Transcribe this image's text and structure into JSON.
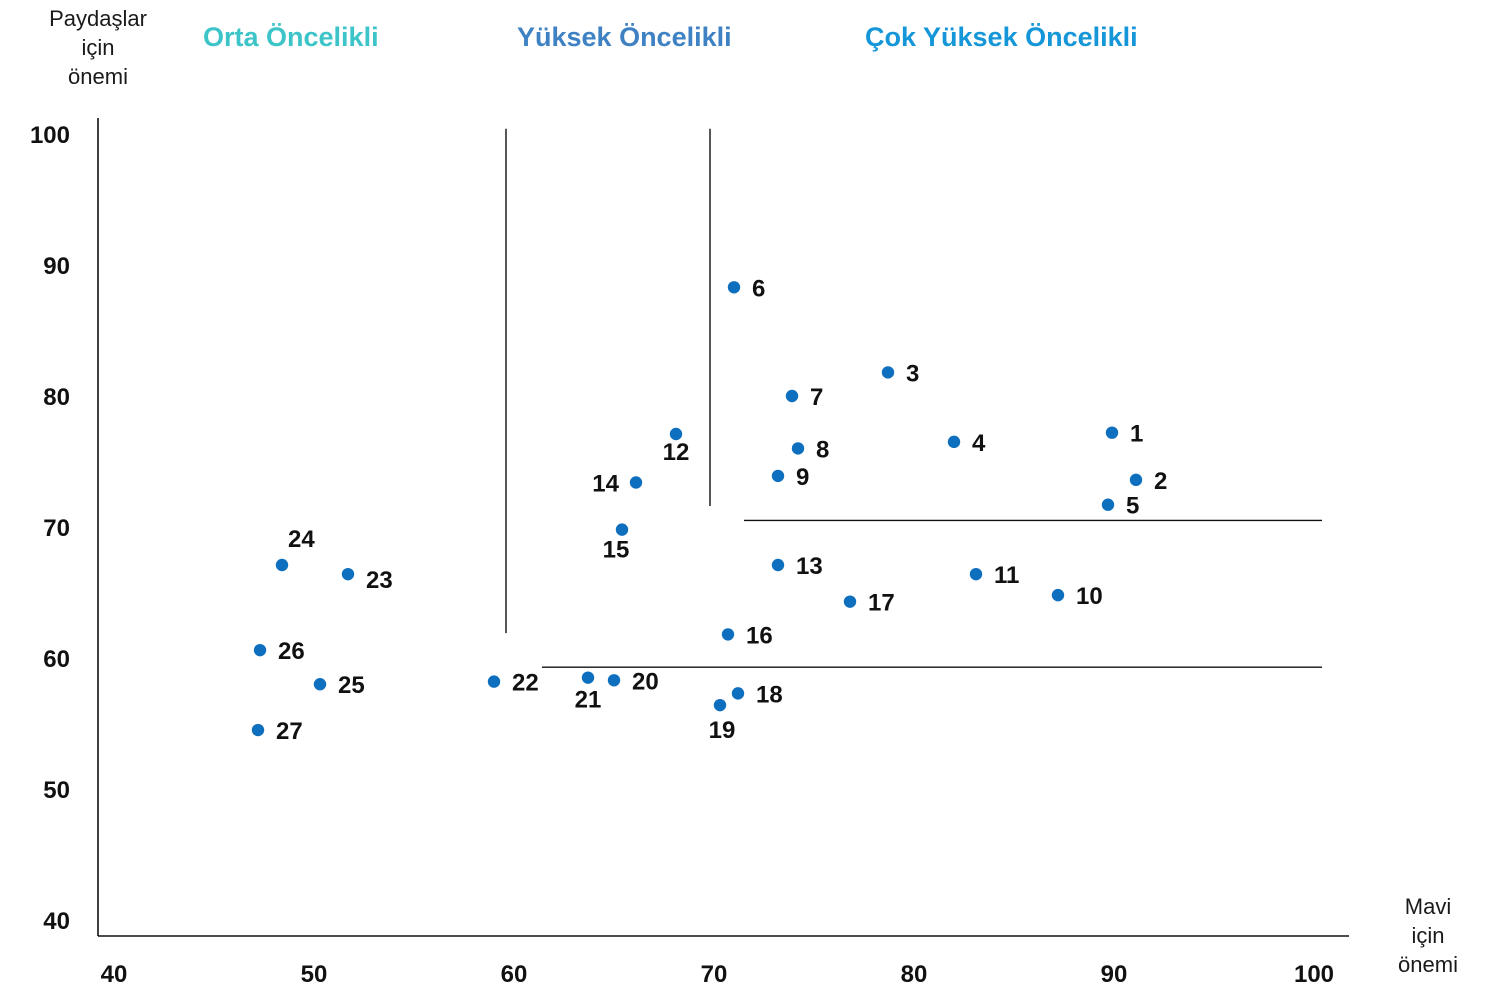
{
  "chart_data": {
    "type": "scatter",
    "ylabel": [
      "Paydaşlar",
      "için",
      "önemi"
    ],
    "xlabel": [
      "Mavi",
      "için",
      "önemi"
    ],
    "xlim": [
      40,
      100
    ],
    "ylim": [
      40,
      100
    ],
    "xticks": [
      40,
      50,
      60,
      70,
      80,
      90,
      100
    ],
    "yticks": [
      40,
      50,
      60,
      70,
      80,
      90,
      100
    ],
    "categories": [
      {
        "label": "Orta Öncelikli",
        "color": "#3cc4c8"
      },
      {
        "label": "Yüksek Öncelikli",
        "color": "#3f82c4"
      },
      {
        "label": "Çok Yüksek Öncelikli",
        "color": "#1596d8"
      }
    ],
    "point_color": "#0e6fbf",
    "points": [
      {
        "label": "1",
        "x": 90.7,
        "y": 77.2
      },
      {
        "label": "2",
        "x": 91.9,
        "y": 73.6
      },
      {
        "label": "3",
        "x": 79.5,
        "y": 81.8
      },
      {
        "label": "4",
        "x": 82.8,
        "y": 76.5
      },
      {
        "label": "5",
        "x": 90.5,
        "y": 71.7
      },
      {
        "label": "6",
        "x": 71.8,
        "y": 88.3
      },
      {
        "label": "7",
        "x": 74.7,
        "y": 80.0
      },
      {
        "label": "8",
        "x": 75.0,
        "y": 76.0
      },
      {
        "label": "9",
        "x": 74.0,
        "y": 73.9
      },
      {
        "label": "10",
        "x": 88.0,
        "y": 64.8
      },
      {
        "label": "11",
        "x": 83.9,
        "y": 66.4
      },
      {
        "label": "12",
        "x": 68.9,
        "y": 77.1
      },
      {
        "label": "13",
        "x": 74.0,
        "y": 67.1
      },
      {
        "label": "14",
        "x": 66.9,
        "y": 73.4
      },
      {
        "label": "15",
        "x": 66.2,
        "y": 69.8
      },
      {
        "label": "16",
        "x": 71.5,
        "y": 61.8
      },
      {
        "label": "17",
        "x": 77.6,
        "y": 64.3
      },
      {
        "label": "18",
        "x": 72.0,
        "y": 57.3
      },
      {
        "label": "19",
        "x": 71.1,
        "y": 56.4
      },
      {
        "label": "20",
        "x": 65.8,
        "y": 58.3
      },
      {
        "label": "21",
        "x": 64.5,
        "y": 58.5
      },
      {
        "label": "22",
        "x": 59.8,
        "y": 58.2
      },
      {
        "label": "23",
        "x": 52.5,
        "y": 66.4
      },
      {
        "label": "24",
        "x": 49.2,
        "y": 67.1
      },
      {
        "label": "25",
        "x": 51.1,
        "y": 58.0
      },
      {
        "label": "26",
        "x": 48.1,
        "y": 60.6
      },
      {
        "label": "27",
        "x": 48.0,
        "y": 54.5
      }
    ],
    "divider_lines": [
      {
        "orientation": "vertical",
        "x": 60.4,
        "from": 61.9,
        "to": 100.4
      },
      {
        "orientation": "vertical",
        "x": 70.6,
        "from": 71.6,
        "to": 100.4
      },
      {
        "orientation": "horizontal",
        "y": 70.5,
        "from": 72.3,
        "to": 101.2
      },
      {
        "orientation": "horizontal",
        "y": 59.3,
        "from": 62.2,
        "to": 101.2
      }
    ]
  }
}
